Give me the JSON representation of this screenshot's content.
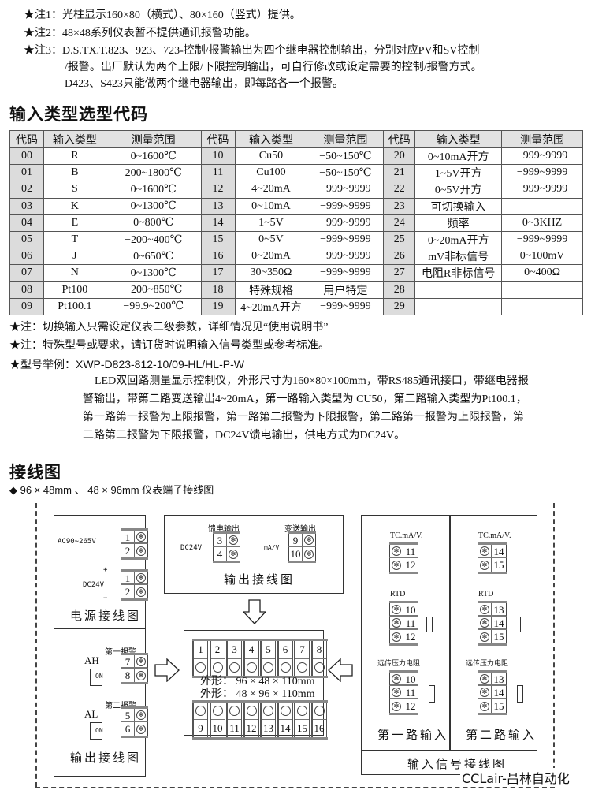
{
  "notes_top": [
    {
      "label": "★注1：",
      "lines": [
        "光柱显示160×80（横式）、80×160（竖式）提供。"
      ]
    },
    {
      "label": "★注2：",
      "lines": [
        "48×48系列仪表暂不提供通讯报警功能。"
      ]
    },
    {
      "label": "★注3：",
      "lines": [
        "D.S.TX.T.823、923、723-控制/报警输出为四个继电器控制输出，分别对应PV和SV控制",
        "/报警。出厂默认为两个上限/下限控制输出，可自行修改或设定需要的控制/报警方式。",
        "D423、S423只能做两个继电器输出，即每路各一个报警。"
      ]
    }
  ],
  "input_table": {
    "title": "输入类型选型代码",
    "headers": [
      "代码",
      "输入类型",
      "测量范围",
      "代码",
      "输入类型",
      "测量范围",
      "代码",
      "输入类型",
      "测量范围"
    ],
    "rows": [
      [
        "00",
        "R",
        "0~1600℃",
        "10",
        "Cu50",
        "−50~150℃",
        "20",
        "0~10mA开方",
        "−999~9999"
      ],
      [
        "01",
        "B",
        "200~1800℃",
        "11",
        "Cu100",
        "−50~150℃",
        "21",
        "1~5V开方",
        "−999~9999"
      ],
      [
        "02",
        "S",
        "0~1600℃",
        "12",
        "4~20mA",
        "−999~9999",
        "22",
        "0~5V开方",
        "−999~9999"
      ],
      [
        "03",
        "K",
        "0~1300℃",
        "13",
        "0~10mA",
        "−999~9999",
        "23",
        "可切换输入",
        ""
      ],
      [
        "04",
        "E",
        "0~800℃",
        "14",
        "1~5V",
        "−999~9999",
        "24",
        "频率",
        "0~3KHZ"
      ],
      [
        "05",
        "T",
        "−200~400℃",
        "15",
        "0~5V",
        "−999~9999",
        "25",
        "0~20mA开方",
        "−999~9999"
      ],
      [
        "06",
        "J",
        "0~650℃",
        "16",
        "0~20mA",
        "−999~9999",
        "26",
        "mV非标信号",
        "0~100mV"
      ],
      [
        "07",
        "N",
        "0~1300℃",
        "17",
        "30~350Ω",
        "−999~9999",
        "27",
        "电阻R非标信号",
        "0~400Ω"
      ],
      [
        "08",
        "Pt100",
        "−200~850℃",
        "18",
        "特殊规格",
        "用户特定",
        "28",
        "",
        ""
      ],
      [
        "09",
        "Pt100.1",
        "−99.9~200℃",
        "19",
        "4~20mA开方",
        "−999~9999",
        "29",
        "",
        ""
      ]
    ]
  },
  "notes_bottom": [
    "★注：切换输入只需设定仪表二级参数，详细情况见“使用说明书”",
    "★注：特殊型号或要求，请订货时说明输入信号类型或参考标准。"
  ],
  "model_example": {
    "label": "★型号举例：",
    "code": "XWP-D823-812-10/09-HL/HL-P-W",
    "lines": [
      "LED双回路测量显示控制仪，外形尺寸为160×80×100mm，带RS485通讯接口，带继电器报",
      "警输出，带第二路变送输出4~20mA，第一路输入类型为 CU50，第二路输入类型为Pt100.1，",
      "第一路第一报警为上限报警，第一路第二报警为下限报警，第二路第一报警为上限报警，第",
      "二路第二报警为下限报警，DC24V馈电输出，供电方式为DC24V。"
    ]
  },
  "wiring": {
    "title": "接线图",
    "subtitle": "◆ 96 × 48mm 、 48 × 96mm 仪表端子接线图",
    "plus": "+",
    "minus": "−",
    "power": {
      "ac_label": "AC90~265V",
      "ac_terms": [
        "1",
        "2"
      ],
      "dc_label": "DC24V",
      "dc_terms": [
        "1",
        "2"
      ],
      "caption": "电源接线图"
    },
    "alarm": {
      "alarm1_title": "第一报警",
      "ah": "AH",
      "on": "ON",
      "alarm1_terms": [
        "7",
        "8"
      ],
      "alarm2_title": "第二报警",
      "al": "AL",
      "alarm2_terms": [
        "5",
        "6"
      ],
      "caption": "输出接线图"
    },
    "output": {
      "feed_title": "馈电输出",
      "feed_label": "DC24V",
      "feed_terms": [
        "3",
        "4"
      ],
      "transmit_title": "变送输出",
      "transmit_label": "mA/V",
      "transmit_terms": [
        "9",
        "10"
      ],
      "caption": "输出接线图"
    },
    "center": {
      "top_terms": [
        "1",
        "2",
        "3",
        "4",
        "5",
        "6",
        "7",
        "8"
      ],
      "bottom_terms": [
        "9",
        "10",
        "11",
        "12",
        "13",
        "14",
        "15",
        "16"
      ],
      "dim1": "外形：  96 × 48 × 110mm",
      "dim2": "外形：  48 × 96 × 110mm"
    },
    "input": {
      "ch1": {
        "tc_label": "TC.mA/V.",
        "tc_terms": [
          "11",
          "12"
        ],
        "rtd_label": "RTD",
        "rtd_terms": [
          "10",
          "11",
          "12"
        ],
        "remote_label": "远传压力电阻",
        "remote_terms": [
          "10",
          "11",
          "12"
        ],
        "caption": "第一路输入"
      },
      "ch2": {
        "tc_label": "TC.mA/V.",
        "tc_terms": [
          "14",
          "15"
        ],
        "rtd_label": "RTD",
        "rtd_terms": [
          "13",
          "14",
          "15"
        ],
        "remote_label": "远传压力电阻",
        "remote_terms": [
          "13",
          "14",
          "15"
        ],
        "caption": "第二路输入"
      },
      "caption": "输入信号接线图"
    }
  },
  "watermark": "CCLair-昌林自动化"
}
